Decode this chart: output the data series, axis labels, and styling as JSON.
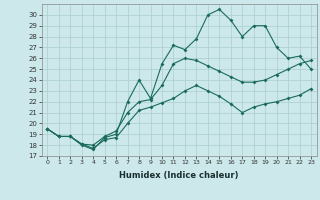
{
  "xlabel": "Humidex (Indice chaleur)",
  "ylabel": "",
  "bg_color": "#cce8ea",
  "grid_color": "#aacdd0",
  "line_color": "#1a6b5a",
  "xlim": [
    -0.5,
    23.5
  ],
  "ylim": [
    17,
    31
  ],
  "xticks": [
    0,
    1,
    2,
    3,
    4,
    5,
    6,
    7,
    8,
    9,
    10,
    11,
    12,
    13,
    14,
    15,
    16,
    17,
    18,
    19,
    20,
    21,
    22,
    23
  ],
  "yticks": [
    17,
    18,
    19,
    20,
    21,
    22,
    23,
    24,
    25,
    26,
    27,
    28,
    29,
    30
  ],
  "line1_x": [
    0,
    1,
    2,
    3,
    4,
    5,
    6,
    7,
    8,
    9,
    10,
    11,
    12,
    13,
    14,
    15,
    16,
    17,
    18,
    19,
    20,
    21,
    22,
    23
  ],
  "line1_y": [
    19.5,
    18.8,
    18.8,
    18.1,
    17.7,
    18.5,
    18.7,
    20.0,
    21.2,
    21.5,
    21.9,
    22.3,
    23.0,
    23.5,
    23.0,
    22.5,
    21.8,
    21.0,
    21.5,
    21.8,
    22.0,
    22.3,
    22.6,
    23.2
  ],
  "line2_x": [
    0,
    1,
    2,
    3,
    4,
    5,
    6,
    7,
    8,
    9,
    10,
    11,
    12,
    13,
    14,
    15,
    16,
    17,
    18,
    19,
    20,
    21,
    22,
    23
  ],
  "line2_y": [
    19.5,
    18.8,
    18.8,
    18.1,
    18.0,
    18.8,
    19.3,
    21.0,
    22.0,
    22.2,
    23.5,
    25.5,
    26.0,
    25.8,
    25.3,
    24.8,
    24.3,
    23.8,
    23.8,
    24.0,
    24.5,
    25.0,
    25.5,
    25.8
  ],
  "line3_x": [
    0,
    1,
    2,
    3,
    4,
    5,
    6,
    7,
    8,
    9,
    10,
    11,
    12,
    13,
    14,
    15,
    16,
    17,
    18,
    19,
    20,
    21,
    22,
    23
  ],
  "line3_y": [
    19.5,
    18.8,
    18.8,
    18.0,
    17.6,
    18.7,
    19.0,
    22.0,
    24.0,
    22.3,
    25.5,
    27.2,
    26.8,
    27.8,
    30.0,
    30.5,
    29.5,
    28.0,
    29.0,
    29.0,
    27.0,
    26.0,
    26.2,
    25.0
  ]
}
